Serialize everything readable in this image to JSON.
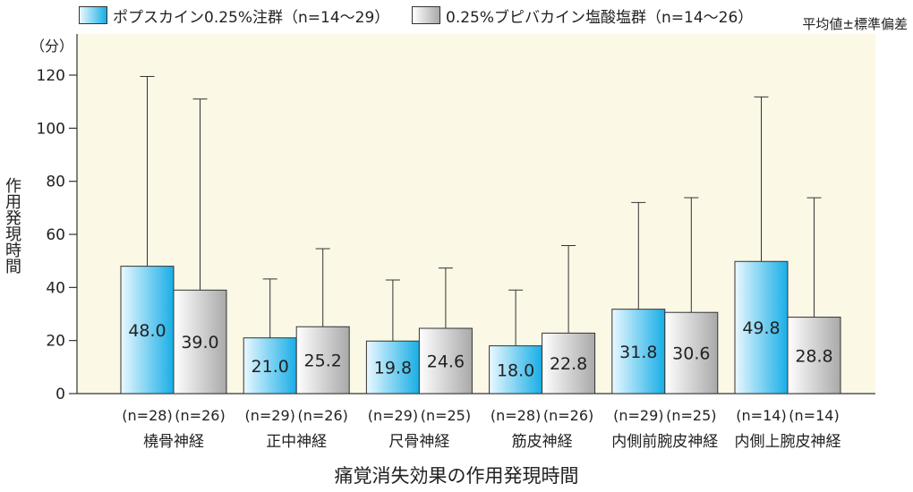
{
  "legend": [
    {
      "label": "ポプスカイン0.25%注群（n=14～29）",
      "style": "blue-gradient"
    },
    {
      "label": "0.25%ブピバカイン塩酸塩群（n=14～26）",
      "style": "gray-gradient"
    }
  ],
  "note": "平均値±標準偏差",
  "colors": {
    "plot_background": "#fcf8e6",
    "blue_light": "#eaf8ff",
    "blue_dark": "#18aee6",
    "gray_light": "#ffffff",
    "gray_dark": "#a9a9a9",
    "axis": "#333333"
  },
  "chart_data": {
    "type": "bar",
    "title": "痛覚消失効果の作用発現時間",
    "ylabel": "作用発現時間",
    "yunit": "（分）",
    "ylim": [
      0,
      120
    ],
    "yticks": [
      0,
      20,
      40,
      60,
      80,
      100,
      120
    ],
    "grid": false,
    "legend_position": "top",
    "categories": [
      "橈骨神経",
      "正中神経",
      "尺骨神経",
      "筋皮神経",
      "内側前腕皮神経",
      "内側上腕皮神経"
    ],
    "series": [
      {
        "name": "ポプスカイン0.25%注群（n=14～29）",
        "values": [
          48.0,
          21.0,
          19.8,
          18.0,
          31.8,
          49.8
        ],
        "value_labels": [
          "48.0",
          "21.0",
          "19.8",
          "18.0",
          "31.8",
          "49.8"
        ],
        "error_upper": [
          119.5,
          43.2,
          42.8,
          39.0,
          72.0,
          111.8
        ],
        "n_labels": [
          "(n=28)",
          "(n=29)",
          "(n=29)",
          "(n=28)",
          "(n=29)",
          "(n=14)"
        ]
      },
      {
        "name": "0.25%ブピバカイン塩酸塩群（n=14～26）",
        "values": [
          39.0,
          25.2,
          24.6,
          22.8,
          30.6,
          28.8
        ],
        "value_labels": [
          "39.0",
          "25.2",
          "24.6",
          "22.8",
          "30.6",
          "28.8"
        ],
        "error_upper": [
          111.0,
          54.6,
          47.3,
          55.8,
          73.8,
          73.8
        ],
        "n_labels": [
          "(n=26)",
          "(n=26)",
          "(n=25)",
          "(n=26)",
          "(n=25)",
          "(n=14)"
        ]
      }
    ]
  }
}
